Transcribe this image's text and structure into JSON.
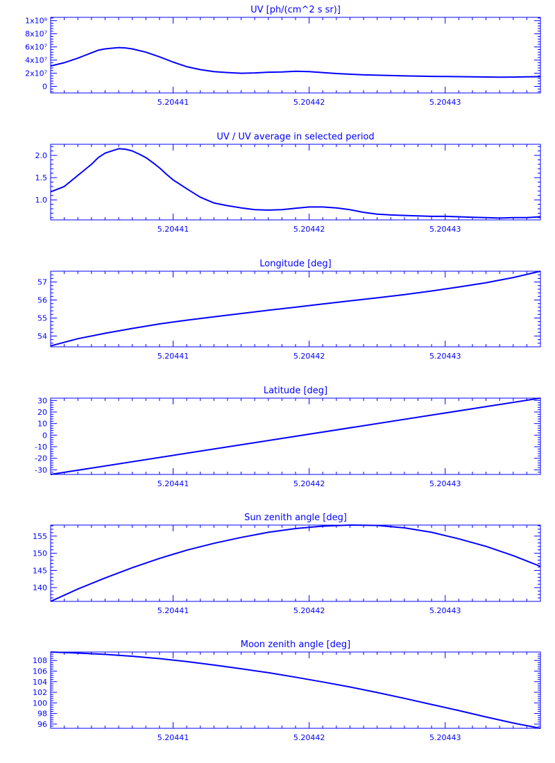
{
  "chart_data": [
    {
      "type": "line",
      "title": "UV [ph/(cm^2 s sr)]",
      "xlim": [
        5.204401,
        5.204437
      ],
      "ylim": [
        -10000000,
        105000000
      ],
      "xticks": [
        {
          "v": 5.20441,
          "label": "5.20441"
        },
        {
          "v": 5.20442,
          "label": "5.20442"
        },
        {
          "v": 5.20443,
          "label": "5.20443"
        }
      ],
      "yticks": [
        {
          "v": 0,
          "label": "0"
        },
        {
          "v": 20000000,
          "label": "2x10⁷"
        },
        {
          "v": 40000000,
          "label": "4x10⁷"
        },
        {
          "v": 60000000,
          "label": "6x10⁷"
        },
        {
          "v": 80000000,
          "label": "8x10⁷"
        },
        {
          "v": 100000000,
          "label": "1x10⁸"
        }
      ],
      "series": [
        {
          "x": [
            5.204401,
            5.204402,
            5.204403,
            5.2044035,
            5.204404,
            5.2044045,
            5.204405,
            5.2044055,
            5.204406,
            5.2044065,
            5.204407,
            5.204408,
            5.204409,
            5.20441,
            5.204411,
            5.204412,
            5.204413,
            5.204414,
            5.204415,
            5.204416,
            5.204417,
            5.204418,
            5.204419,
            5.20442,
            5.204421,
            5.204422,
            5.204423,
            5.204424,
            5.204425,
            5.204426,
            5.204427,
            5.204428,
            5.204429,
            5.20443,
            5.204431,
            5.204432,
            5.204433,
            5.204434,
            5.204435,
            5.204436,
            5.204437
          ],
          "y": [
            31000000,
            36000000,
            43000000,
            47000000,
            51000000,
            55000000,
            57000000,
            58000000,
            59000000,
            58500000,
            57000000,
            52000000,
            45000000,
            37000000,
            30000000,
            25500000,
            22500000,
            21000000,
            20000000,
            20500000,
            21500000,
            22000000,
            23000000,
            22500000,
            21000000,
            19500000,
            18500000,
            17500000,
            17000000,
            16500000,
            16000000,
            15500000,
            15200000,
            15000000,
            14800000,
            14500000,
            14300000,
            14000000,
            14200000,
            14500000,
            14800000
          ]
        }
      ]
    },
    {
      "type": "line",
      "title": "UV / UV average in selected period",
      "xlim": [
        5.204401,
        5.204437
      ],
      "ylim": [
        0.55,
        2.25
      ],
      "xticks": [
        {
          "v": 5.20441,
          "label": "5.20441"
        },
        {
          "v": 5.20442,
          "label": "5.20442"
        },
        {
          "v": 5.20443,
          "label": "5.20443"
        }
      ],
      "yticks": [
        {
          "v": 1.0,
          "label": "1.0"
        },
        {
          "v": 1.5,
          "label": "1.5"
        },
        {
          "v": 2.0,
          "label": "2.0"
        }
      ],
      "series": [
        {
          "x": [
            5.204401,
            5.204402,
            5.204403,
            5.204404,
            5.2044045,
            5.204405,
            5.2044055,
            5.204406,
            5.2044065,
            5.204407,
            5.2044075,
            5.204408,
            5.2044085,
            5.204409,
            5.2044095,
            5.20441,
            5.204411,
            5.204412,
            5.204413,
            5.204414,
            5.204415,
            5.204416,
            5.204417,
            5.204418,
            5.204419,
            5.20442,
            5.204421,
            5.204422,
            5.204423,
            5.204424,
            5.204425,
            5.204426,
            5.204427,
            5.204428,
            5.204429,
            5.20443,
            5.204431,
            5.204432,
            5.204433,
            5.204434,
            5.204435,
            5.204436,
            5.204437
          ],
          "y": [
            1.18,
            1.3,
            1.55,
            1.8,
            1.95,
            2.05,
            2.1,
            2.15,
            2.14,
            2.1,
            2.03,
            1.95,
            1.84,
            1.72,
            1.58,
            1.45,
            1.25,
            1.06,
            0.93,
            0.87,
            0.82,
            0.78,
            0.77,
            0.78,
            0.81,
            0.84,
            0.84,
            0.82,
            0.78,
            0.72,
            0.68,
            0.66,
            0.65,
            0.64,
            0.63,
            0.63,
            0.62,
            0.61,
            0.6,
            0.59,
            0.6,
            0.6,
            0.62
          ]
        }
      ]
    },
    {
      "type": "line",
      "title": "Longitude [deg]",
      "xlim": [
        5.204401,
        5.204437
      ],
      "ylim": [
        53.4,
        57.6
      ],
      "xticks": [
        {
          "v": 5.20441,
          "label": "5.20441"
        },
        {
          "v": 5.20442,
          "label": "5.20442"
        },
        {
          "v": 5.20443,
          "label": "5.20443"
        }
      ],
      "yticks": [
        {
          "v": 54,
          "label": "54"
        },
        {
          "v": 55,
          "label": "55"
        },
        {
          "v": 56,
          "label": "56"
        },
        {
          "v": 57,
          "label": "57"
        }
      ],
      "series": [
        {
          "x": [
            5.204401,
            5.204403,
            5.204405,
            5.204407,
            5.204409,
            5.204411,
            5.204413,
            5.204415,
            5.204417,
            5.204419,
            5.204421,
            5.204423,
            5.204425,
            5.204427,
            5.204429,
            5.204431,
            5.204433,
            5.204435,
            5.204437
          ],
          "y": [
            53.45,
            53.85,
            54.15,
            54.42,
            54.67,
            54.88,
            55.07,
            55.25,
            55.43,
            55.6,
            55.78,
            55.95,
            56.12,
            56.3,
            56.5,
            56.72,
            56.96,
            57.25,
            57.6
          ]
        }
      ]
    },
    {
      "type": "line",
      "title": "Latitude [deg]",
      "xlim": [
        5.204401,
        5.204437
      ],
      "ylim": [
        -34,
        32
      ],
      "xticks": [
        {
          "v": 5.20441,
          "label": "5.20441"
        },
        {
          "v": 5.20442,
          "label": "5.20442"
        },
        {
          "v": 5.20443,
          "label": "5.20443"
        }
      ],
      "yticks": [
        {
          "v": -30,
          "label": "-30"
        },
        {
          "v": -20,
          "label": "-20"
        },
        {
          "v": -10,
          "label": "-10"
        },
        {
          "v": 0,
          "label": "0"
        },
        {
          "v": 10,
          "label": "10"
        },
        {
          "v": 20,
          "label": "20"
        },
        {
          "v": 30,
          "label": "30"
        }
      ],
      "series": [
        {
          "x": [
            5.204401,
            5.204437
          ],
          "y": [
            -34,
            32
          ]
        }
      ]
    },
    {
      "type": "line",
      "title": "Sun zenith angle [deg]",
      "xlim": [
        5.204401,
        5.204437
      ],
      "ylim": [
        136,
        158.2
      ],
      "xticks": [
        {
          "v": 5.20441,
          "label": "5.20441"
        },
        {
          "v": 5.20442,
          "label": "5.20442"
        },
        {
          "v": 5.20443,
          "label": "5.20443"
        }
      ],
      "yticks": [
        {
          "v": 140,
          "label": "140"
        },
        {
          "v": 145,
          "label": "145"
        },
        {
          "v": 150,
          "label": "150"
        },
        {
          "v": 155,
          "label": "155"
        }
      ],
      "series": [
        {
          "x": [
            5.204401,
            5.204403,
            5.204405,
            5.204407,
            5.204409,
            5.204411,
            5.204413,
            5.204415,
            5.204417,
            5.204419,
            5.204421,
            5.204423,
            5.204425,
            5.204427,
            5.204429,
            5.204431,
            5.204433,
            5.204435,
            5.204437
          ],
          "y": [
            136,
            139.6,
            142.8,
            145.8,
            148.5,
            150.9,
            152.9,
            154.6,
            156.1,
            157.2,
            157.9,
            158.2,
            158.1,
            157.4,
            156.1,
            154.2,
            152.0,
            149.3,
            146.2
          ]
        }
      ]
    },
    {
      "type": "line",
      "title": "Moon zenith angle [deg]",
      "xlim": [
        5.204401,
        5.204437
      ],
      "ylim": [
        95.2,
        109.6
      ],
      "xticks": [
        {
          "v": 5.20441,
          "label": "5.20441"
        },
        {
          "v": 5.20442,
          "label": "5.20442"
        },
        {
          "v": 5.20443,
          "label": "5.20443"
        }
      ],
      "yticks": [
        {
          "v": 96,
          "label": "96"
        },
        {
          "v": 98,
          "label": "98"
        },
        {
          "v": 100,
          "label": "100"
        },
        {
          "v": 102,
          "label": "102"
        },
        {
          "v": 104,
          "label": "104"
        },
        {
          "v": 106,
          "label": "106"
        },
        {
          "v": 108,
          "label": "108"
        }
      ],
      "series": [
        {
          "x": [
            5.204401,
            5.204403,
            5.204405,
            5.204407,
            5.204409,
            5.204411,
            5.204413,
            5.204415,
            5.204417,
            5.204419,
            5.204421,
            5.204423,
            5.204425,
            5.204427,
            5.204429,
            5.204431,
            5.204433,
            5.204435,
            5.204437
          ],
          "y": [
            109.6,
            109.4,
            109.15,
            108.8,
            108.35,
            107.8,
            107.15,
            106.45,
            105.7,
            104.85,
            103.95,
            103.0,
            101.95,
            100.85,
            99.7,
            98.55,
            97.35,
            96.2,
            95.2
          ]
        }
      ]
    }
  ]
}
